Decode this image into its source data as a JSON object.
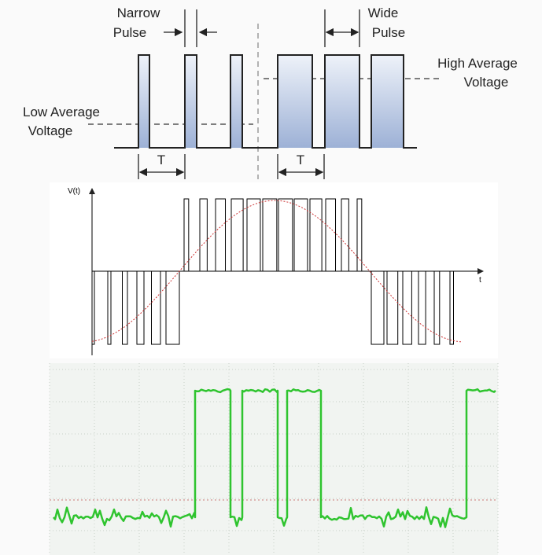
{
  "pwm_diagram": {
    "narrow_pulse": {
      "lines": [
        "Narrow",
        "Pulse"
      ]
    },
    "wide_pulse": {
      "lines": [
        "Wide",
        "Pulse"
      ]
    },
    "high_average": {
      "lines": [
        "High Average",
        "Voltage"
      ]
    },
    "low_average": {
      "lines": [
        "Low Average",
        "Voltage"
      ]
    },
    "period_labels": [
      "T",
      "T"
    ]
  },
  "sine_pwm": {
    "y_axis_label": "V(t)",
    "x_axis_label": "t"
  }
}
